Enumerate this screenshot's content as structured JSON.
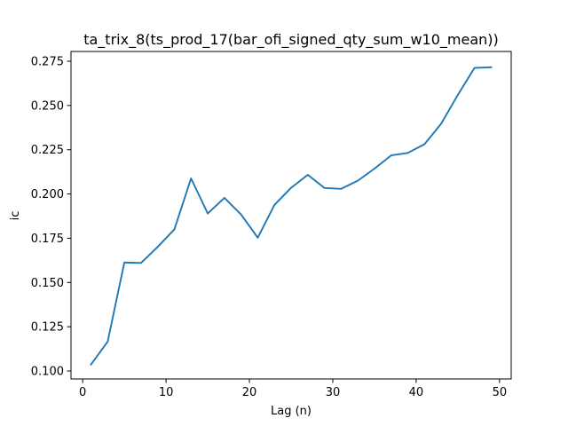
{
  "chart_data": {
    "type": "line",
    "title": "ta_trix_8(ts_prod_17(bar_ofi_signed_qty_sum_w10_mean))",
    "xlabel": "Lag (n)",
    "ylabel": "ic",
    "xlim": [
      -1.4,
      51.4
    ],
    "ylim": [
      0.0955,
      0.2805
    ],
    "xticks": [
      0,
      10,
      20,
      30,
      40,
      50
    ],
    "yticks": [
      0.1,
      0.125,
      0.15,
      0.175,
      0.2,
      0.225,
      0.25,
      0.275
    ],
    "grid": false,
    "series": [
      {
        "name": "ic",
        "color": "#1f77b4",
        "x": [
          1,
          3,
          5,
          7,
          9,
          11,
          13,
          15,
          17,
          19,
          21,
          23,
          25,
          27,
          29,
          31,
          33,
          35,
          37,
          39,
          41,
          43,
          45,
          47,
          49
        ],
        "values": [
          0.1037,
          0.1166,
          0.1613,
          0.161,
          0.1701,
          0.18,
          0.2088,
          0.189,
          0.1978,
          0.1884,
          0.1753,
          0.1938,
          0.2035,
          0.2108,
          0.2034,
          0.2029,
          0.2075,
          0.2143,
          0.2218,
          0.2232,
          0.2281,
          0.2397,
          0.256,
          0.2712,
          0.2716
        ]
      }
    ]
  }
}
